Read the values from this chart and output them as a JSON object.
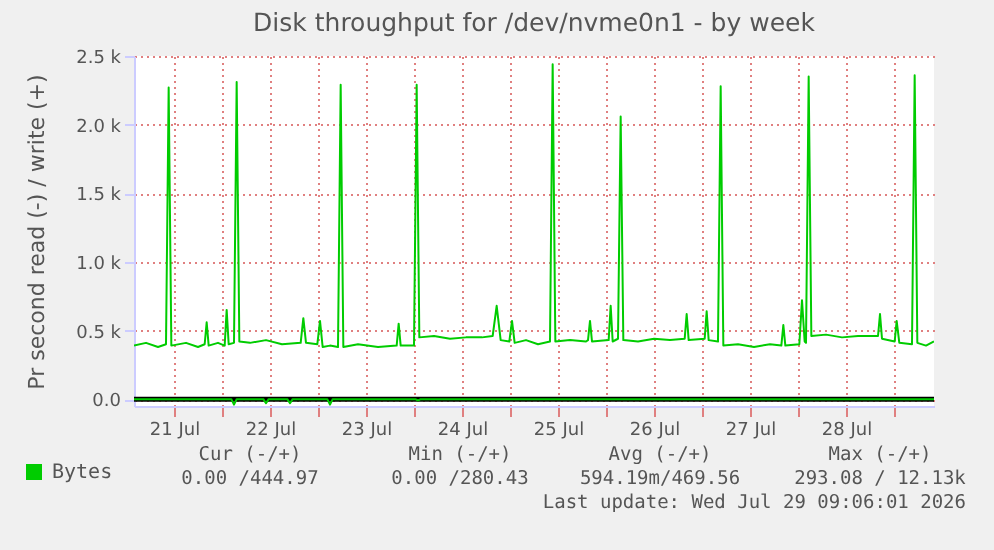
{
  "chart_data": {
    "type": "line",
    "title": "Disk throughput for /dev/nvme0n1 - by week",
    "ylabel": "Pr second read (-) / write (+)",
    "xlim": [
      "2026-07-21T02:00",
      "2026-07-29T10:00"
    ],
    "xticks": [
      {
        "value": "2026-07-22T00:00",
        "label": null
      },
      {
        "value": "2026-07-23T00:00",
        "label": null
      },
      {
        "value": "2026-07-24T00:00",
        "label": null
      },
      {
        "value": "2026-07-25T00:00",
        "label": null
      },
      {
        "value": "2026-07-26T00:00",
        "label": null
      },
      {
        "value": "2026-07-27T00:00",
        "label": null
      },
      {
        "value": "2026-07-28T00:00",
        "label": null
      },
      {
        "value": "2026-07-29T00:00",
        "label": null
      },
      {
        "value": "2026-07-21T12:00",
        "label": "21 Jul"
      },
      {
        "value": "2026-07-22T12:00",
        "label": "22 Jul"
      },
      {
        "value": "2026-07-23T12:00",
        "label": "23 Jul"
      },
      {
        "value": "2026-07-24T12:00",
        "label": "24 Jul"
      },
      {
        "value": "2026-07-25T12:00",
        "label": "25 Jul"
      },
      {
        "value": "2026-07-26T12:00",
        "label": "26 Jul"
      },
      {
        "value": "2026-07-27T12:00",
        "label": "27 Jul"
      },
      {
        "value": "2026-07-28T12:00",
        "label": "28 Jul"
      }
    ],
    "ylim": [
      -50,
      2500
    ],
    "yticks": [
      {
        "value": 0,
        "label": "0.0"
      },
      {
        "value": 500,
        "label": "0.5 k"
      },
      {
        "value": 1000,
        "label": "1.0 k"
      },
      {
        "value": 1500,
        "label": "1.5 k"
      },
      {
        "value": 2000,
        "label": "2.0 k"
      },
      {
        "value": 2500,
        "label": "2.5 k"
      }
    ],
    "grid": true,
    "legend": "bottom left",
    "ref_lines": [
      {
        "axis": "y",
        "value": 0,
        "color": "#000000"
      }
    ],
    "series": [
      {
        "name": "Bytes",
        "color": "#00cc00",
        "x": [
          "2026-07-21T02:00",
          "2026-07-21T05:00",
          "2026-07-21T08:00",
          "2026-07-21T10:00",
          "2026-07-21T10:40",
          "2026-07-21T11:20",
          "2026-07-21T15:00",
          "2026-07-21T18:00",
          "2026-07-21T19:40",
          "2026-07-21T20:10",
          "2026-07-21T20:40",
          "2026-07-21T23:00",
          "2026-07-22T00:40",
          "2026-07-22T01:10",
          "2026-07-22T01:40",
          "2026-07-22T03:00",
          "2026-07-22T03:40",
          "2026-07-22T04:20",
          "2026-07-22T07:00",
          "2026-07-22T11:00",
          "2026-07-22T15:00",
          "2026-07-22T19:40",
          "2026-07-22T20:20",
          "2026-07-22T21:00",
          "2026-07-22T23:50",
          "2026-07-23T00:30",
          "2026-07-23T01:10",
          "2026-07-23T03:00",
          "2026-07-23T05:00",
          "2026-07-23T05:40",
          "2026-07-23T06:20",
          "2026-07-23T10:00",
          "2026-07-23T15:00",
          "2026-07-23T19:40",
          "2026-07-23T20:10",
          "2026-07-23T20:40",
          "2026-07-24T00:00",
          "2026-07-24T00:40",
          "2026-07-24T01:20",
          "2026-07-24T05:00",
          "2026-07-24T09:00",
          "2026-07-24T13:00",
          "2026-07-24T17:00",
          "2026-07-24T19:40",
          "2026-07-24T20:40",
          "2026-07-24T21:40",
          "2026-07-24T23:50",
          "2026-07-25T00:30",
          "2026-07-25T01:10",
          "2026-07-25T04:00",
          "2026-07-25T07:00",
          "2026-07-25T10:00",
          "2026-07-25T10:40",
          "2026-07-25T11:20",
          "2026-07-25T15:00",
          "2026-07-25T19:00",
          "2026-07-25T19:30",
          "2026-07-25T20:00",
          "2026-07-25T20:30",
          "2026-07-26T00:40",
          "2026-07-26T01:10",
          "2026-07-26T01:40",
          "2026-07-26T03:00",
          "2026-07-26T03:40",
          "2026-07-26T04:20",
          "2026-07-26T08:00",
          "2026-07-26T12:00",
          "2026-07-26T16:00",
          "2026-07-26T19:40",
          "2026-07-26T20:10",
          "2026-07-26T20:40",
          "2026-07-27T00:40",
          "2026-07-27T01:10",
          "2026-07-27T01:40",
          "2026-07-27T04:00",
          "2026-07-27T04:40",
          "2026-07-27T05:20",
          "2026-07-27T09:00",
          "2026-07-27T13:00",
          "2026-07-27T17:00",
          "2026-07-27T19:50",
          "2026-07-27T20:20",
          "2026-07-27T20:50",
          "2026-07-28T00:20",
          "2026-07-28T01:00",
          "2026-07-28T01:40",
          "2026-07-28T02:00",
          "2026-07-28T02:40",
          "2026-07-28T03:20",
          "2026-07-28T07:00",
          "2026-07-28T11:00",
          "2026-07-28T15:00",
          "2026-07-28T20:00",
          "2026-07-28T20:30",
          "2026-07-28T21:00",
          "2026-07-29T00:10",
          "2026-07-29T00:40",
          "2026-07-29T01:20",
          "2026-07-29T04:30",
          "2026-07-29T05:10",
          "2026-07-29T05:50",
          "2026-07-29T08:00",
          "2026-07-29T10:00"
        ],
        "values": [
          390,
          410,
          380,
          400,
          2270,
          390,
          410,
          380,
          400,
          560,
          390,
          410,
          390,
          650,
          400,
          410,
          2310,
          420,
          410,
          430,
          400,
          410,
          590,
          410,
          400,
          570,
          380,
          390,
          380,
          2290,
          380,
          400,
          380,
          390,
          550,
          390,
          390,
          2290,
          450,
          460,
          440,
          450,
          450,
          460,
          680,
          430,
          420,
          570,
          410,
          430,
          400,
          420,
          2440,
          420,
          430,
          420,
          430,
          570,
          420,
          430,
          680,
          420,
          440,
          2060,
          430,
          420,
          440,
          430,
          440,
          620,
          430,
          440,
          640,
          430,
          420,
          2280,
          390,
          400,
          380,
          400,
          390,
          540,
          390,
          400,
          720,
          420,
          410,
          2350,
          460,
          470,
          450,
          460,
          460,
          620,
          440,
          420,
          570,
          410,
          400,
          2360,
          410,
          390,
          420
        ]
      },
      {
        "color": "#00cc00",
        "x": [
          "2026-07-21T02:00",
          "2026-07-22T02:20",
          "2026-07-22T03:00",
          "2026-07-22T03:40",
          "2026-07-22T10:20",
          "2026-07-22T11:00",
          "2026-07-22T11:40",
          "2026-07-22T16:20",
          "2026-07-22T17:00",
          "2026-07-22T17:40",
          "2026-07-23T02:20",
          "2026-07-23T03:00",
          "2026-07-23T03:40",
          "2026-07-24T00:20",
          "2026-07-24T01:00",
          "2026-07-24T01:40",
          "2026-07-29T10:00"
        ],
        "values": [
          0,
          0,
          -40,
          0,
          0,
          -30,
          0,
          0,
          -30,
          0,
          0,
          -40,
          0,
          0,
          -10,
          0,
          0
        ]
      }
    ],
    "annotations": [
      "Cur (-/+)",
      "Min (-/+)",
      "Avg (-/+)",
      "Max (-/+)",
      "0.00 /444.97",
      "0.00 /280.43",
      "594.19m/469.56",
      "293.08 / 12.13k",
      "Last update: Wed Jul 29 09:06:01 2026"
    ]
  }
}
